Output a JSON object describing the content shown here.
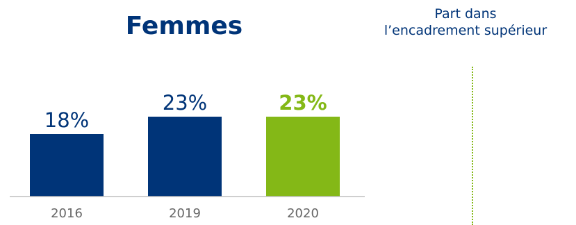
{
  "title": "Femmes",
  "subtitle_lines": [
    "Part dans",
    "l’encadrement supérieur"
  ],
  "colors": {
    "primary": "#003478",
    "highlight": "#84b817",
    "tick": "#666666",
    "axis": "#bfbfbf"
  },
  "chart_data": {
    "type": "bar",
    "categories": [
      "2016",
      "2019",
      "2020"
    ],
    "values": [
      18,
      23,
      23
    ],
    "value_labels": [
      "18%",
      "23%",
      "23%"
    ],
    "highlighted_index": 2,
    "ylim": [
      0,
      40
    ],
    "grid": false,
    "legend": "none"
  }
}
